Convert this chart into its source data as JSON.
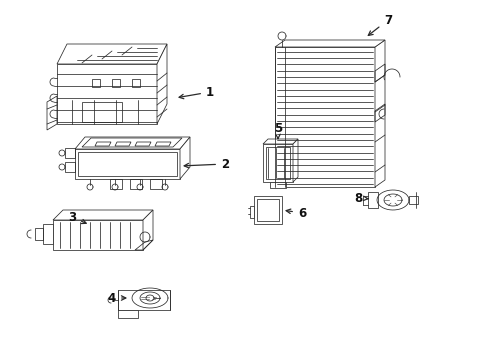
{
  "background_color": "#ffffff",
  "line_color": "#2a2a2a",
  "label_color": "#111111",
  "lw": 0.55,
  "fig_w": 4.9,
  "fig_h": 3.6,
  "dpi": 100
}
